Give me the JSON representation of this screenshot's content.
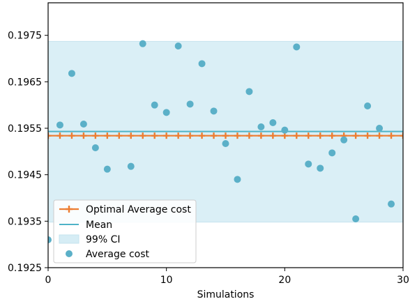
{
  "chart_data": {
    "type": "scatter",
    "title": "",
    "xlabel": "Simulations",
    "ylabel": "",
    "xlim": [
      0,
      30
    ],
    "ylim": [
      0.1925,
      0.1982
    ],
    "x_ticks": [
      0,
      10,
      20,
      30
    ],
    "y_ticks": [
      0.1925,
      0.1935,
      0.1945,
      0.1955,
      0.1965,
      0.1975
    ],
    "y_tick_labels": [
      "0.1925",
      "0.1935",
      "0.1945",
      "0.1955",
      "0.1965",
      "0.1975"
    ],
    "x_tick_labels": [
      "0",
      "10",
      "20",
      "30"
    ],
    "grid": false,
    "legend_position": "lower-left",
    "series": [
      {
        "name": "Optimal Average cost",
        "kind": "line-marker",
        "color": "#ed7d31",
        "x": [
          0,
          1,
          2,
          3,
          4,
          5,
          6,
          7,
          8,
          9,
          10,
          11,
          12,
          13,
          14,
          15,
          16,
          17,
          18,
          19,
          20,
          21,
          22,
          23,
          24,
          25,
          26,
          27,
          28,
          29,
          30
        ],
        "y": [
          0.19534,
          0.19534,
          0.19534,
          0.19534,
          0.19534,
          0.19534,
          0.19534,
          0.19534,
          0.19534,
          0.19534,
          0.19534,
          0.19534,
          0.19534,
          0.19534,
          0.19534,
          0.19534,
          0.19534,
          0.19534,
          0.19534,
          0.19534,
          0.19534,
          0.19534,
          0.19534,
          0.19534,
          0.19534,
          0.19534,
          0.19534,
          0.19534,
          0.19534,
          0.19534,
          0.19534
        ]
      },
      {
        "name": "Mean",
        "kind": "hline",
        "color": "#4eb3c7",
        "y": 0.19543
      },
      {
        "name": "99% CI",
        "kind": "band",
        "color": "#d6edf5",
        "y_low": 0.19348,
        "y_high": 0.19737
      },
      {
        "name": "Average cost",
        "kind": "scatter",
        "color": "#5bb0c8",
        "x": [
          0,
          1,
          2,
          3,
          4,
          5,
          7,
          8,
          9,
          10,
          11,
          12,
          13,
          14,
          15,
          16,
          17,
          18,
          19,
          20,
          21,
          22,
          23,
          24,
          25,
          26,
          27,
          28,
          29
        ],
        "y": [
          0.1931,
          0.19557,
          0.19668,
          0.19559,
          0.19508,
          0.19462,
          0.19468,
          0.19732,
          0.196,
          0.19584,
          0.19727,
          0.19602,
          0.19689,
          0.19587,
          0.19517,
          0.1944,
          0.19629,
          0.19553,
          0.19562,
          0.19546,
          0.19725,
          0.19473,
          0.19464,
          0.19497,
          0.19525,
          0.19355,
          0.19598,
          0.1955,
          0.19387
        ]
      }
    ]
  },
  "legend": {
    "items": [
      {
        "label": "Optimal Average cost",
        "key": "optimal"
      },
      {
        "label": "Mean",
        "key": "mean"
      },
      {
        "label": "99% CI",
        "key": "ci"
      },
      {
        "label": "Average cost",
        "key": "avg"
      }
    ]
  }
}
